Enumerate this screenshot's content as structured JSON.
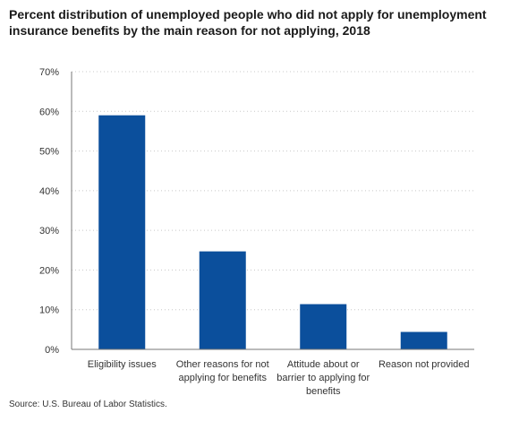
{
  "chart_data": {
    "type": "bar",
    "title": "Percent distribution of unemployed people who did not apply for unemployment insurance benefits by the main reason for not applying, 2018",
    "categories": [
      [
        "Eligibility issues"
      ],
      [
        "Other reasons for not",
        "applying for benefits"
      ],
      [
        "Attitude about or",
        "barrier to applying for",
        "benefits"
      ],
      [
        "Reason not provided"
      ]
    ],
    "values": [
      59.0,
      24.7,
      11.4,
      4.4
    ],
    "ylim": [
      0,
      70
    ],
    "yticks": [
      0,
      10,
      20,
      30,
      40,
      50,
      60,
      70
    ],
    "ytick_labels": [
      "0%",
      "10%",
      "20%",
      "30%",
      "40%",
      "50%",
      "60%",
      "70%"
    ],
    "grid": true,
    "bar_color": "#0b4f9c",
    "source": "Source: U.S. Bureau of Labor Statistics."
  }
}
